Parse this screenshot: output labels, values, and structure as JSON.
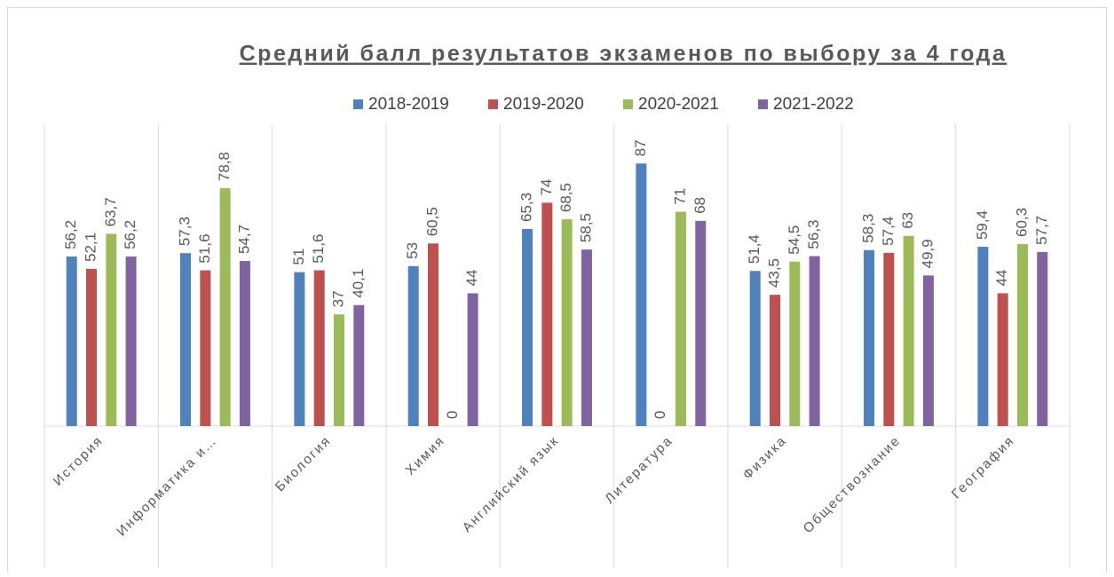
{
  "chart_data": {
    "type": "bar",
    "title": "Средний балл результатов экзаменов по выбору за 4 года",
    "categories": [
      "История",
      "Информатика и…",
      "Биология",
      "Химия",
      "Английский язык",
      "Литература",
      "Физика",
      "Обществознание",
      "География"
    ],
    "series": [
      {
        "name": "2018-2019",
        "color": "#4f81bd",
        "values": [
          56.2,
          57.3,
          51,
          53,
          65.3,
          87,
          51.4,
          58.3,
          59.4
        ],
        "value_labels": [
          "56,2",
          "57,3",
          "51",
          "53",
          "65,3",
          "87",
          "51,4",
          "58,3",
          "59,4"
        ]
      },
      {
        "name": "2019-2020",
        "color": "#c0504d",
        "values": [
          52.1,
          51.6,
          51.6,
          60.5,
          74,
          0,
          43.5,
          57.4,
          44
        ],
        "value_labels": [
          "52,1",
          "51,6",
          "51,6",
          "60,5",
          "74",
          "0",
          "43,5",
          "57,4",
          "44"
        ]
      },
      {
        "name": "2020-2021",
        "color": "#9bbb59",
        "values": [
          63.7,
          78.8,
          37,
          0,
          68.5,
          71,
          54.5,
          63,
          60.3
        ],
        "value_labels": [
          "63,7",
          "78,8",
          "37",
          "0",
          "68,5",
          "71",
          "54,5",
          "63",
          "60,3"
        ]
      },
      {
        "name": "2021-2022",
        "color": "#8064a2",
        "values": [
          56.2,
          54.7,
          40.1,
          44,
          58.5,
          68,
          56.3,
          49.9,
          57.7
        ],
        "value_labels": [
          "56,2",
          "54,7",
          "40,1",
          "44",
          "58,5",
          "68",
          "56,3",
          "49,9",
          "57,7"
        ]
      }
    ],
    "ylim": [
      0,
      100
    ],
    "legend": "top"
  }
}
